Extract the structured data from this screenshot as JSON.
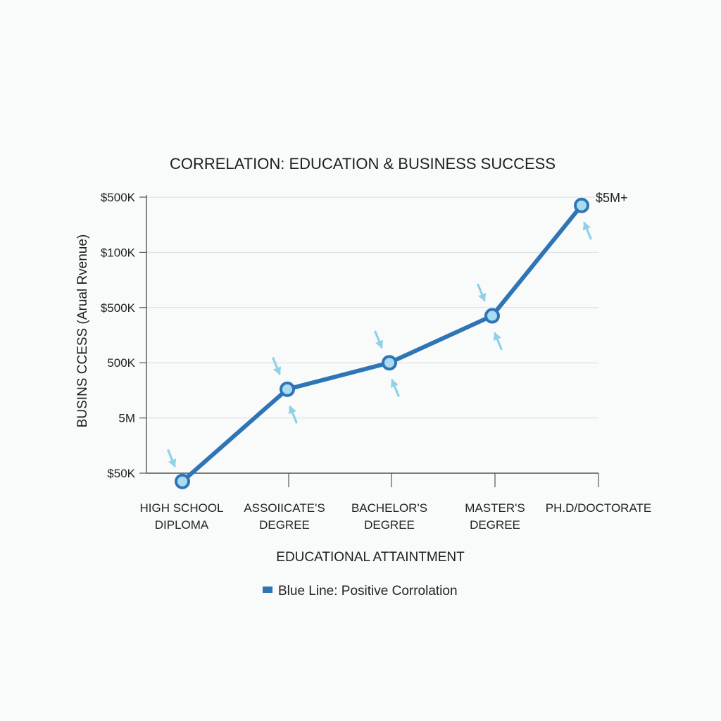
{
  "chart_data": {
    "type": "line",
    "title": "CORRELATION: EDUCATION & BUSINESS SUCCESS",
    "xlabel": "EDUCATIONAL ATTAINTMENT",
    "ylabel": "BUSINS CCESS (Arual Rvenue)",
    "categories": [
      [
        "HIGH SCHOOL",
        "DIPLOMA"
      ],
      [
        "ASSOIICATE'S",
        "DEGREE"
      ],
      [
        "BACHELOR'S",
        "DEGREE"
      ],
      [
        "MASTER'S",
        "DEGREE"
      ],
      [
        "PH.D/DOCTORATE"
      ]
    ],
    "y_ticks": [
      "$50K",
      "5M",
      "500K",
      "$500K",
      "$100K",
      "$500K"
    ],
    "series": [
      {
        "name": "Blue Line: Positive Corrolation",
        "values": [
          -0.15,
          1.52,
          2.0,
          2.85,
          4.85
        ]
      }
    ],
    "ylim": [
      0,
      5
    ],
    "grid": true,
    "legend_position": "bottom-center",
    "annotations": [
      {
        "text": "$5M+",
        "category_index": 4
      }
    ],
    "colors": {
      "line": "#2e75b6",
      "marker_fill": "#a9dcf0",
      "marker_stroke": "#2e75b6",
      "arrow": "#8fd1e6",
      "grid": "#d8dcdf",
      "axis": "#555555"
    }
  }
}
